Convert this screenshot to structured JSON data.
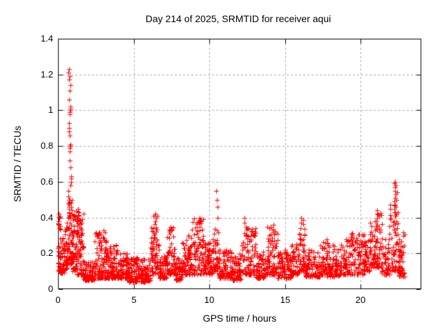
{
  "chart_data": {
    "type": "scatter",
    "title": "Day 214 of 2025, SRMTID for receiver aqui",
    "xlabel": "GPS time / hours",
    "ylabel": "SRMTID / TECUs",
    "xlim": [
      0,
      24
    ],
    "ylim": [
      0,
      1.4
    ],
    "xticks": [
      0,
      5,
      10,
      15,
      20
    ],
    "xtick_labels": [
      "0",
      "5",
      "10",
      "15",
      "20"
    ],
    "yticks": [
      0,
      0.2,
      0.4,
      0.6,
      0.8,
      1,
      1.2,
      1.4
    ],
    "ytick_labels": [
      "0",
      "0.2",
      "0.4",
      "0.6",
      "0.8",
      "1",
      "1.2",
      "1.4"
    ],
    "legend": "none",
    "grid": {
      "show": true,
      "color": "#a8a8a8",
      "dash": [
        3,
        3
      ]
    },
    "marker": {
      "shape": "plus",
      "color": "#ff0000",
      "size": 7
    },
    "axis_color": "#000000",
    "background_color": "#ffffff",
    "seed": 214,
    "baseline_segments": [
      [
        0.0,
        0.15,
        0.1,
        0.42,
        30
      ],
      [
        0.15,
        0.45,
        0.09,
        0.3,
        45
      ],
      [
        0.45,
        0.62,
        0.11,
        0.38,
        30
      ],
      [
        0.62,
        0.95,
        0.14,
        0.5,
        60
      ],
      [
        0.95,
        1.2,
        0.1,
        0.42,
        45
      ],
      [
        1.2,
        1.7,
        0.08,
        0.45,
        85
      ],
      [
        1.7,
        2.4,
        0.05,
        0.16,
        95
      ],
      [
        2.4,
        3.2,
        0.06,
        0.33,
        105
      ],
      [
        3.2,
        4.0,
        0.06,
        0.26,
        100
      ],
      [
        4.0,
        4.6,
        0.06,
        0.22,
        70
      ],
      [
        4.6,
        6.1,
        0.04,
        0.18,
        170
      ],
      [
        6.1,
        6.7,
        0.08,
        0.42,
        70
      ],
      [
        6.7,
        7.2,
        0.06,
        0.2,
        60
      ],
      [
        7.2,
        7.7,
        0.08,
        0.36,
        60
      ],
      [
        7.7,
        8.2,
        0.05,
        0.18,
        60
      ],
      [
        8.2,
        8.8,
        0.08,
        0.31,
        70
      ],
      [
        8.8,
        9.7,
        0.08,
        0.4,
        95
      ],
      [
        9.7,
        10.2,
        0.08,
        0.26,
        55
      ],
      [
        10.2,
        10.6,
        0.1,
        0.34,
        40
      ],
      [
        10.6,
        11.5,
        0.06,
        0.22,
        95
      ],
      [
        11.5,
        12.1,
        0.05,
        0.2,
        65
      ],
      [
        12.1,
        13.1,
        0.08,
        0.35,
        95
      ],
      [
        13.1,
        13.7,
        0.06,
        0.22,
        65
      ],
      [
        13.7,
        14.5,
        0.08,
        0.35,
        85
      ],
      [
        14.5,
        15.4,
        0.06,
        0.22,
        90
      ],
      [
        15.4,
        15.9,
        0.08,
        0.26,
        50
      ],
      [
        15.9,
        16.3,
        0.1,
        0.4,
        45
      ],
      [
        16.3,
        17.3,
        0.07,
        0.22,
        95
      ],
      [
        17.3,
        17.8,
        0.08,
        0.28,
        50
      ],
      [
        17.8,
        18.6,
        0.07,
        0.25,
        80
      ],
      [
        18.6,
        19.3,
        0.08,
        0.28,
        70
      ],
      [
        19.3,
        20.2,
        0.08,
        0.32,
        85
      ],
      [
        20.2,
        20.6,
        0.1,
        0.3,
        45
      ],
      [
        20.6,
        21.4,
        0.12,
        0.44,
        90
      ],
      [
        21.4,
        21.9,
        0.08,
        0.3,
        50
      ],
      [
        21.9,
        22.5,
        0.1,
        0.48,
        55
      ],
      [
        22.5,
        22.9,
        0.07,
        0.33,
        55
      ]
    ],
    "spike_columns": [
      {
        "t": 0.72,
        "ys": [
          1.23,
          1.21,
          1.19,
          1.17
        ]
      },
      {
        "t": 0.76,
        "ys": [
          1.14,
          1.11,
          1.06
        ]
      },
      {
        "t": 0.8,
        "ys": [
          1.02,
          1.01,
          1.0,
          0.99,
          0.98
        ]
      },
      {
        "t": 0.74,
        "ys": [
          0.93,
          0.9,
          0.88,
          0.86
        ]
      },
      {
        "t": 0.78,
        "ys": [
          0.81,
          0.8,
          0.8,
          0.79,
          0.77,
          0.72
        ]
      },
      {
        "t": 0.83,
        "ys": [
          0.68,
          0.63,
          0.62,
          0.6,
          0.58
        ]
      },
      {
        "t": 0.7,
        "ys": [
          0.55,
          0.52,
          0.5,
          0.47,
          0.45,
          0.43
        ]
      },
      {
        "t": 0.88,
        "ys": [
          0.46,
          0.44,
          0.42
        ]
      },
      {
        "t": 0.05,
        "ys": [
          0.42,
          0.4,
          0.38,
          0.36,
          0.34
        ]
      },
      {
        "t": 1.35,
        "ys": [
          0.45,
          0.43,
          0.41
        ]
      },
      {
        "t": 6.45,
        "ys": [
          0.42,
          0.4,
          0.38
        ]
      },
      {
        "t": 7.45,
        "ys": [
          0.35,
          0.33
        ]
      },
      {
        "t": 9.4,
        "ys": [
          0.4,
          0.38
        ]
      },
      {
        "t": 10.5,
        "ys": [
          0.55,
          0.5,
          0.46,
          0.4,
          0.33,
          0.26
        ]
      },
      {
        "t": 12.35,
        "ys": [
          0.4,
          0.37
        ]
      },
      {
        "t": 14.2,
        "ys": [
          0.36,
          0.33
        ]
      },
      {
        "t": 16.05,
        "ys": [
          0.4,
          0.37,
          0.34
        ]
      },
      {
        "t": 21.05,
        "ys": [
          0.44,
          0.42,
          0.4,
          0.38,
          0.36
        ]
      },
      {
        "t": 22.25,
        "ys": [
          0.6,
          0.59,
          0.57,
          0.55,
          0.53,
          0.51,
          0.49,
          0.47,
          0.45,
          0.43,
          0.41
        ]
      },
      {
        "t": 22.35,
        "ys": [
          0.58,
          0.54,
          0.5,
          0.46,
          0.42,
          0.38,
          0.34,
          0.3,
          0.26,
          0.22
        ]
      }
    ]
  }
}
